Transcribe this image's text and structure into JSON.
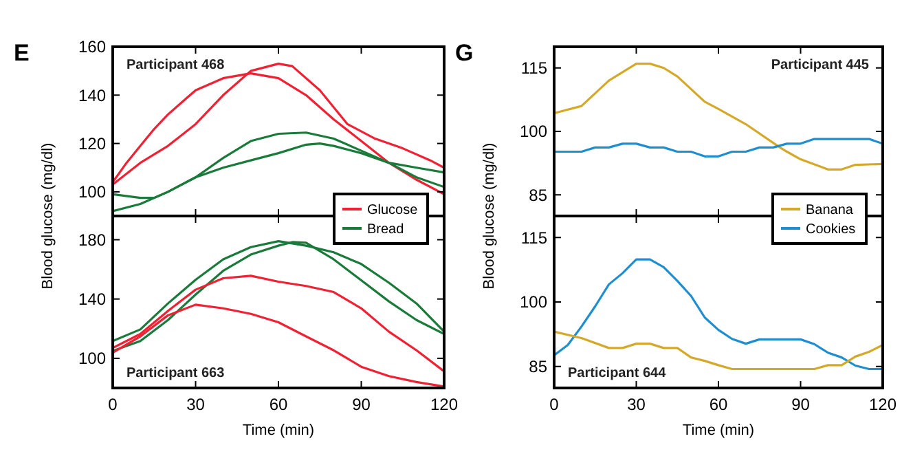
{
  "chart_data": [
    {
      "type": "line",
      "title": "E",
      "subtitle": "Participant 468",
      "ylabel": "Blood glucose (mg/dl)",
      "xlim": [
        0,
        120
      ],
      "xticks": [
        0,
        30,
        60,
        90,
        120
      ],
      "ylim": [
        90,
        160
      ],
      "yticks": [
        100,
        120,
        140,
        160
      ],
      "tick_labels": "y",
      "legend": "bottom right",
      "series": [
        {
          "name": "Glucose",
          "color": "#ee2233",
          "x": [
            0,
            10,
            20,
            30,
            40,
            50,
            60,
            65,
            75,
            85,
            95,
            105,
            115,
            120
          ],
          "values": [
            103,
            112,
            119,
            128,
            140,
            150,
            153,
            152,
            142,
            128,
            122,
            118,
            113,
            110
          ]
        },
        {
          "color": "#ee2233",
          "x": [
            0,
            5,
            10,
            15,
            20,
            25,
            30,
            40,
            50,
            60,
            70,
            80,
            90,
            100,
            110,
            120
          ],
          "values": [
            104,
            112,
            119,
            126,
            132,
            137,
            142,
            147,
            149,
            147,
            140,
            130,
            121,
            112,
            105,
            99
          ]
        },
        {
          "name": "Bread",
          "color": "#1a7a3a",
          "x": [
            0,
            10,
            20,
            30,
            40,
            50,
            60,
            70,
            80,
            90,
            100,
            110,
            120
          ],
          "values": [
            92,
            95,
            100,
            106,
            114,
            121,
            124,
            124.5,
            122,
            117,
            112,
            106,
            102
          ]
        },
        {
          "color": "#1a7a3a",
          "x": [
            0,
            10,
            15,
            20,
            30,
            40,
            50,
            60,
            70,
            75,
            80,
            90,
            100,
            110,
            120
          ],
          "values": [
            99,
            97.5,
            97.5,
            100,
            106,
            110,
            113,
            116,
            119.5,
            120,
            119,
            116,
            112,
            110,
            108
          ]
        }
      ]
    },
    {
      "type": "line",
      "subtitle": "Participant 663",
      "xlabel": "Time (min)",
      "xlim": [
        0,
        120
      ],
      "xticks": [
        0,
        30,
        60,
        90,
        120
      ],
      "ylim": [
        80,
        196
      ],
      "yticks": [
        100,
        140,
        180
      ],
      "series": [
        {
          "color": "#1a7a3a",
          "x": [
            0,
            10,
            20,
            30,
            40,
            50,
            60,
            70,
            80,
            90,
            100,
            110,
            120
          ],
          "values": [
            111.7,
            119.5,
            137,
            153,
            166.8,
            175,
            179,
            176,
            171.5,
            163.6,
            151,
            137,
            118
          ]
        },
        {
          "color": "#1a7a3a",
          "x": [
            0,
            10,
            20,
            30,
            40,
            50,
            60,
            65,
            70,
            80,
            90,
            100,
            110,
            120
          ],
          "values": [
            105,
            111.7,
            125.8,
            143,
            159,
            170,
            176,
            178.4,
            178,
            166.8,
            152.6,
            138.4,
            125.8,
            116.4
          ]
        },
        {
          "color": "#ee2233",
          "x": [
            0,
            10,
            20,
            30,
            40,
            50,
            60,
            70,
            80,
            90,
            100,
            110,
            120
          ],
          "values": [
            107,
            116.4,
            132,
            146.3,
            154,
            155.7,
            151.7,
            148.8,
            144.7,
            133.7,
            118,
            105.4,
            91.2
          ]
        },
        {
          "color": "#ee2233",
          "x": [
            0,
            10,
            20,
            30,
            40,
            50,
            60,
            70,
            80,
            90,
            100,
            110,
            120
          ],
          "values": [
            103.8,
            114.8,
            129,
            136.2,
            133.7,
            130,
            124.3,
            114.8,
            105.4,
            94.3,
            88,
            84,
            81
          ]
        }
      ]
    },
    {
      "type": "line",
      "title": "G",
      "subtitle": "Participant 445",
      "ylabel": "Blood glucose (mg/dl)",
      "xlim": [
        0,
        120
      ],
      "xticks": [
        0,
        30,
        60,
        90,
        120
      ],
      "ylim": [
        80,
        120
      ],
      "yticks": [
        85,
        100,
        115
      ],
      "tick_labels": "y",
      "legend": "bottom right",
      "series": [
        {
          "name": "Banana",
          "color": "#d4a92a",
          "x": [
            0,
            10,
            20,
            30,
            35,
            40,
            45,
            55,
            60,
            70,
            82,
            85,
            90,
            100,
            105,
            110,
            120
          ],
          "values": [
            104.3,
            106,
            112,
            116,
            116,
            115,
            113,
            107,
            105.3,
            101.7,
            96.4,
            95.2,
            93.4,
            91,
            91,
            92.1,
            92.3
          ]
        },
        {
          "name": "Cookies",
          "color": "#1f8ed0",
          "x": [
            0,
            10,
            15,
            20,
            25,
            30,
            35,
            40,
            45,
            50,
            55,
            60,
            65,
            70,
            75,
            80,
            85,
            90,
            95,
            115,
            120
          ],
          "values": [
            95.2,
            95.2,
            96.2,
            96.2,
            97.1,
            97.1,
            96.2,
            96.2,
            95.2,
            95.2,
            94.1,
            94.1,
            95.2,
            95.2,
            96.2,
            96.2,
            97.1,
            97.1,
            98.2,
            98.2,
            97.1
          ]
        }
      ]
    },
    {
      "type": "line",
      "subtitle": "Participant 644",
      "xlabel": "Time (min)",
      "xlim": [
        0,
        120
      ],
      "xticks": [
        0,
        30,
        60,
        90,
        120
      ],
      "ylim": [
        80,
        120
      ],
      "yticks": [
        85,
        100,
        115
      ],
      "series": [
        {
          "color": "#1f8ed0",
          "x": [
            0,
            5,
            10,
            15,
            20,
            25,
            30,
            35,
            40,
            45,
            50,
            55,
            60,
            65,
            70,
            75,
            90,
            95,
            100,
            105,
            110,
            115,
            120
          ],
          "values": [
            87.6,
            90,
            94.3,
            99,
            104.1,
            106.7,
            109.9,
            109.9,
            108.1,
            104.9,
            101.4,
            96.4,
            93.5,
            91.4,
            90.3,
            91.3,
            91.3,
            90.2,
            88.2,
            87.1,
            85.2,
            84.4,
            84.4
          ]
        },
        {
          "color": "#d4a92a",
          "x": [
            0,
            10,
            20,
            25,
            30,
            35,
            40,
            45,
            50,
            55,
            60,
            65,
            95,
            100,
            105,
            110,
            115,
            120
          ],
          "values": [
            93.1,
            91.6,
            89.3,
            89.3,
            90.3,
            90.3,
            89.3,
            89.3,
            87.1,
            86.3,
            85.3,
            84.4,
            84.4,
            85.3,
            85.3,
            87.3,
            88.4,
            90
          ]
        }
      ]
    }
  ]
}
